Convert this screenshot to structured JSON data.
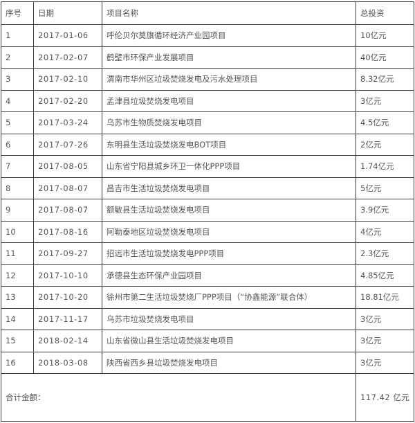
{
  "table": {
    "headers": [
      "序号",
      "日期",
      "项目名称",
      "总投资"
    ],
    "rows": [
      {
        "no": "1",
        "date": "2017-01-06",
        "name": "呼伦贝尔莫旗循环经济产业园项目",
        "investment": "10亿元"
      },
      {
        "no": "2",
        "date": "2017-02-07",
        "name": "鹤壁市环保产业发展项目",
        "investment": "40亿元"
      },
      {
        "no": "3",
        "date": "2017-02-10",
        "name": "渭南市华州区垃圾焚烧发电及污水处理项目",
        "investment": "8.32亿元"
      },
      {
        "no": "4",
        "date": "2017-02-20",
        "name": "孟津县垃圾焚烧发电项目",
        "investment": "3亿元"
      },
      {
        "no": "5",
        "date": "2017-03-24",
        "name": "乌苏市生物质焚烧发电项目",
        "investment": "4.5亿元"
      },
      {
        "no": "6",
        "date": "2017-07-26",
        "name": "东明县生活垃圾焚烧发电BOT项目",
        "investment": "2亿元"
      },
      {
        "no": "7",
        "date": "2017-08-05",
        "name": "山东省宁阳县城乡环卫一体化PPP项目",
        "investment": "1.74亿元"
      },
      {
        "no": "8",
        "date": "2017-08-07",
        "name": "昌吉市生活垃圾焚烧发电项目",
        "investment": "5亿元"
      },
      {
        "no": "9",
        "date": "2017-08-07",
        "name": "额敏县生活垃圾焚烧发电项目",
        "investment": "3.9亿元"
      },
      {
        "no": "10",
        "date": "2017-08-16",
        "name": "阿勒泰地区垃圾焚烧发电项目",
        "investment": "4亿元"
      },
      {
        "no": "11",
        "date": "2017-09-27",
        "name": "招远市生活垃圾焚烧发电PPP项目",
        "investment": "2.3亿元"
      },
      {
        "no": "12",
        "date": "2017-10-10",
        "name": "承德县生态环保产业园项目",
        "investment": "4.85亿元"
      },
      {
        "no": "13",
        "date": "2017-10-20",
        "name": "徐州市第二生活垃圾焚烧厂PPP项目（“协鑫能源”联合体）",
        "investment": "18.81亿元"
      },
      {
        "no": "14",
        "date": "2017-11-17",
        "name": "乌苏市垃圾焚烧发电项目",
        "investment": "3亿元"
      },
      {
        "no": "15",
        "date": "2018-02-14",
        "name": "山东省微山县生活垃圾焚烧发电项目",
        "investment": "3亿元"
      },
      {
        "no": "16",
        "date": "2018-03-08",
        "name": "陕西省西乡县垃圾焚烧发电项目",
        "investment": "3亿元"
      }
    ],
    "total_label": "合计金额：",
    "total_value": "117.42 亿元"
  }
}
